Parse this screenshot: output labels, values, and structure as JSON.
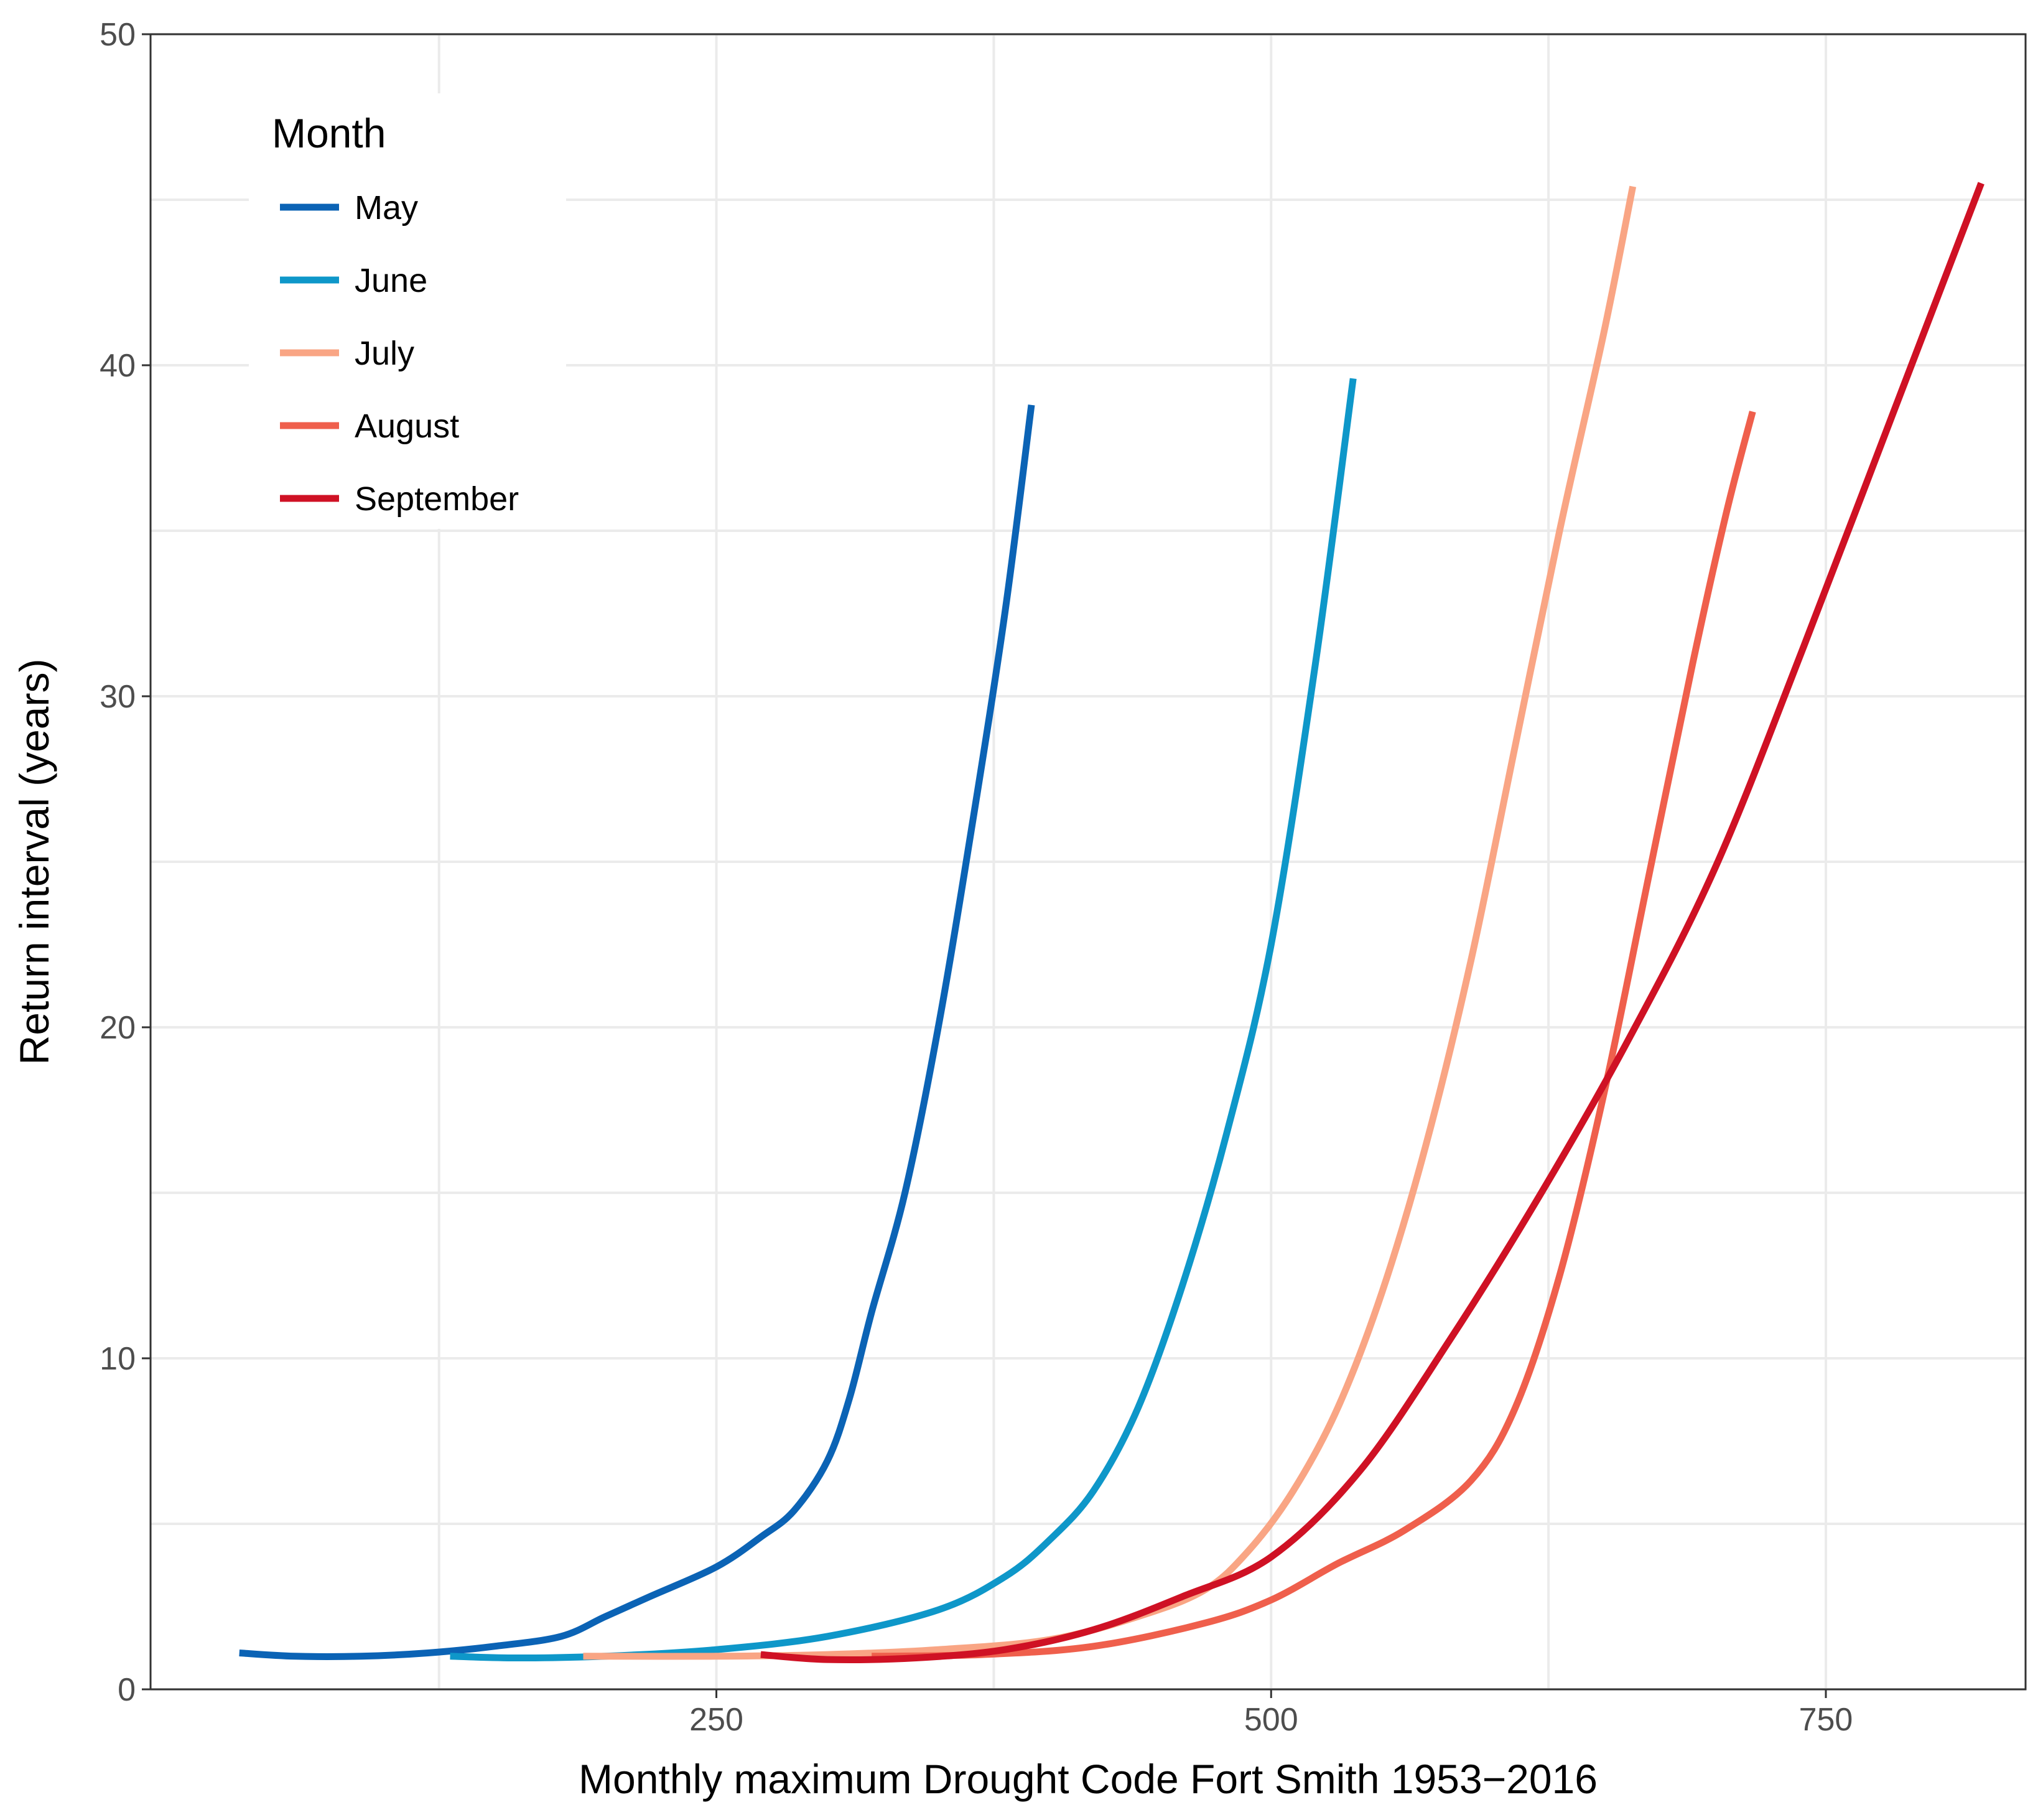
{
  "chart_data": {
    "type": "line",
    "title": "",
    "xlabel": "Monthly maximum Drought Code Fort Smith 1953−2016",
    "ylabel": "Return interval (years)",
    "xlim": [
      -5,
      840
    ],
    "ylim": [
      0,
      50
    ],
    "xticks": [
      250,
      500,
      750
    ],
    "xtick_labels": [
      "250",
      "500",
      "750"
    ],
    "yticks": [
      0,
      10,
      20,
      30,
      40,
      50
    ],
    "ytick_labels": [
      "0",
      "10",
      "20",
      "30",
      "40",
      "50"
    ],
    "grid": true,
    "legend": {
      "title": "Month",
      "placement": "top-left"
    },
    "series": [
      {
        "name": "May",
        "color": "#0b63b5",
        "x": [
          35,
          60,
          90,
          120,
          150,
          180,
          200,
          220,
          250,
          270,
          285,
          300,
          310,
          320,
          335,
          350,
          365,
          380,
          392
        ],
        "y": [
          1.1,
          1.0,
          1.0,
          1.1,
          1.3,
          1.6,
          2.2,
          2.8,
          3.7,
          4.6,
          5.4,
          6.9,
          8.8,
          11.4,
          15.0,
          20.0,
          26.0,
          32.5,
          38.8
        ]
      },
      {
        "name": "June",
        "color": "#0e97c9",
        "x": [
          130,
          160,
          200,
          250,
          300,
          350,
          380,
          400,
          420,
          440,
          460,
          480,
          500,
          520,
          537
        ],
        "y": [
          1.0,
          0.95,
          1.0,
          1.2,
          1.6,
          2.4,
          3.4,
          4.5,
          6.0,
          8.5,
          12.2,
          16.8,
          22.5,
          31.0,
          39.6
        ]
      },
      {
        "name": "July",
        "color": "#f9a584",
        "x": [
          190,
          250,
          300,
          350,
          400,
          440,
          470,
          490,
          510,
          530,
          550,
          570,
          590,
          610,
          630,
          650,
          663
        ],
        "y": [
          1.0,
          1.0,
          1.05,
          1.2,
          1.5,
          2.2,
          3.0,
          4.2,
          6.0,
          8.5,
          12.0,
          16.5,
          22.0,
          28.5,
          35.0,
          41.0,
          45.4
        ]
      },
      {
        "name": "August",
        "color": "#ef5f4c",
        "x": [
          320,
          370,
          420,
          470,
          500,
          530,
          560,
          590,
          610,
          630,
          650,
          670,
          690,
          705,
          717
        ],
        "y": [
          1.0,
          1.05,
          1.3,
          2.0,
          2.7,
          3.8,
          4.8,
          6.3,
          8.5,
          12.5,
          18.0,
          24.5,
          31.0,
          35.5,
          38.6
        ]
      },
      {
        "name": "September",
        "color": "#cf1124",
        "x": [
          270,
          300,
          340,
          380,
          420,
          460,
          500,
          540,
          580,
          620,
          660,
          700,
          740,
          780,
          820
        ],
        "y": [
          1.05,
          0.9,
          0.95,
          1.2,
          1.8,
          2.8,
          4.0,
          6.6,
          10.5,
          14.8,
          19.5,
          24.8,
          31.5,
          38.5,
          45.5
        ]
      }
    ]
  }
}
